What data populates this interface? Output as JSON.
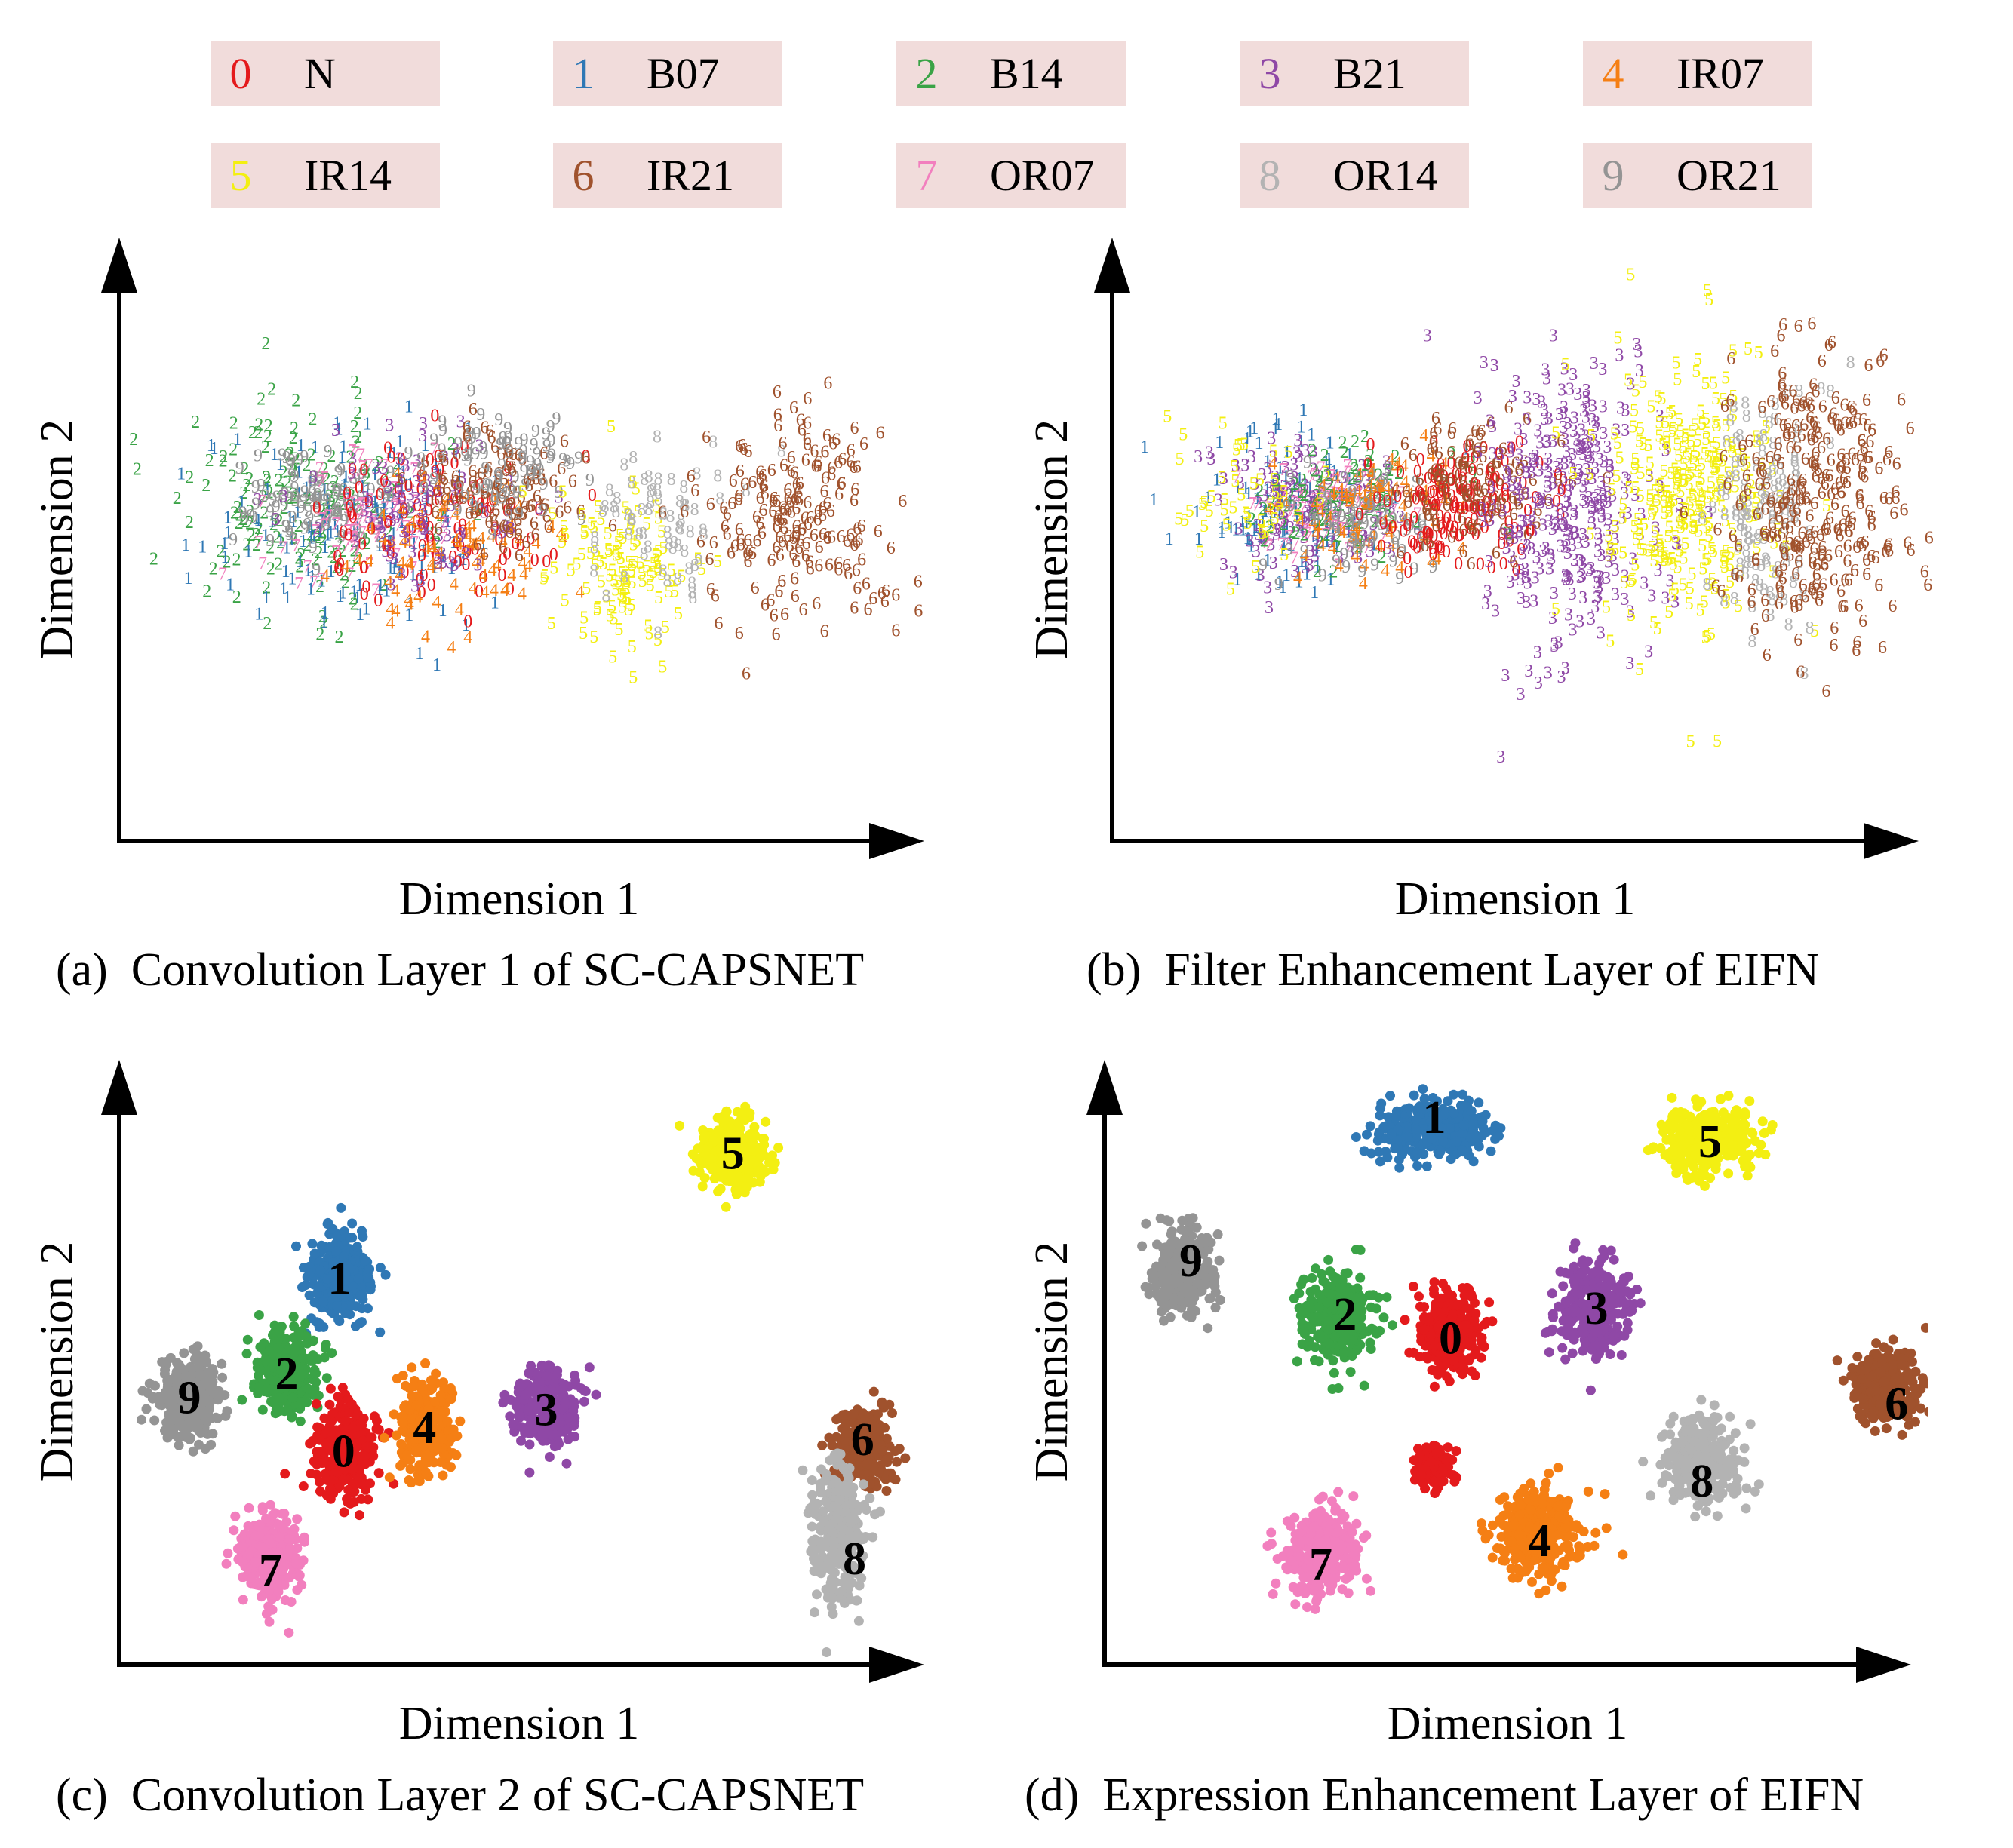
{
  "legend": [
    {
      "digit": "0",
      "name": "N",
      "color": "#e41a1c"
    },
    {
      "digit": "1",
      "name": "B07",
      "color": "#2f78b5"
    },
    {
      "digit": "2",
      "name": "B14",
      "color": "#3aa346"
    },
    {
      "digit": "3",
      "name": "B21",
      "color": "#8f48a6"
    },
    {
      "digit": "4",
      "name": "IR07",
      "color": "#f57f14"
    },
    {
      "digit": "5",
      "name": "IR14",
      "color": "#f3ef12"
    },
    {
      "digit": "6",
      "name": "IR21",
      "color": "#a0522d"
    },
    {
      "digit": "7",
      "name": "OR07",
      "color": "#f27fbe"
    },
    {
      "digit": "8",
      "name": "OR14",
      "color": "#b3b3b3"
    },
    {
      "digit": "9",
      "name": "OR21",
      "color": "#949494"
    }
  ],
  "legend_bg_color": "#f1dcdb",
  "chart_data": [
    {
      "type": "scatter",
      "caption": "(a)  Convolution Layer 1 of SC-CAPSNET",
      "xlabel": "Dimension 1",
      "ylabel": "Dimension 2",
      "xlim": [
        0,
        100
      ],
      "ylim": [
        0,
        100
      ],
      "grid": false,
      "point_style": "digit markers",
      "clusters": [
        {
          "class": "2",
          "x": 22,
          "y": 56,
          "spread": [
            15,
            16
          ],
          "n": 160
        },
        {
          "class": "1",
          "x": 28,
          "y": 52,
          "spread": [
            16,
            16
          ],
          "n": 160
        },
        {
          "class": "9",
          "x": 24,
          "y": 56,
          "spread": [
            8,
            7
          ],
          "n": 110
        },
        {
          "class": "7",
          "x": 30,
          "y": 54,
          "spread": [
            10,
            10
          ],
          "n": 90
        },
        {
          "class": "0",
          "x": 38,
          "y": 52,
          "spread": [
            14,
            12
          ],
          "n": 110
        },
        {
          "class": "4",
          "x": 40,
          "y": 47,
          "spread": [
            12,
            11
          ],
          "n": 90
        },
        {
          "class": "3",
          "x": 36,
          "y": 56,
          "spread": [
            12,
            11
          ],
          "n": 90
        },
        {
          "class": "6",
          "x": 46,
          "y": 58,
          "spread": [
            9,
            9
          ],
          "n": 110
        },
        {
          "class": "9",
          "x": 47,
          "y": 62,
          "spread": [
            8,
            8
          ],
          "n": 90
        },
        {
          "class": "5",
          "x": 62,
          "y": 44,
          "spread": [
            8,
            12
          ],
          "n": 120
        },
        {
          "class": "8",
          "x": 66,
          "y": 52,
          "spread": [
            8,
            14
          ],
          "n": 70
        },
        {
          "class": "6",
          "x": 82,
          "y": 54,
          "spread": [
            11,
            16
          ],
          "n": 200
        }
      ],
      "annotations": []
    },
    {
      "type": "scatter",
      "caption": "(b)  Filter Enhancement Layer of EIFN",
      "xlabel": "Dimension 1",
      "ylabel": "Dimension 2",
      "xlim": [
        0,
        100
      ],
      "ylim": [
        0,
        100
      ],
      "grid": false,
      "point_style": "digit markers",
      "clusters": [
        {
          "class": "1",
          "x": 22,
          "y": 56,
          "spread": [
            12,
            12
          ],
          "n": 120
        },
        {
          "class": "3",
          "x": 24,
          "y": 54,
          "spread": [
            11,
            11
          ],
          "n": 140
        },
        {
          "class": "7",
          "x": 26,
          "y": 55,
          "spread": [
            9,
            8
          ],
          "n": 90
        },
        {
          "class": "2",
          "x": 28,
          "y": 57,
          "spread": [
            10,
            9
          ],
          "n": 90
        },
        {
          "class": "4",
          "x": 32,
          "y": 54,
          "spread": [
            10,
            9
          ],
          "n": 100
        },
        {
          "class": "9",
          "x": 30,
          "y": 52,
          "spread": [
            9,
            8
          ],
          "n": 80
        },
        {
          "class": "0",
          "x": 42,
          "y": 56,
          "spread": [
            9,
            9
          ],
          "n": 150
        },
        {
          "class": "6",
          "x": 44,
          "y": 58,
          "spread": [
            10,
            10
          ],
          "n": 120
        },
        {
          "class": "5",
          "x": 16,
          "y": 56,
          "spread": [
            8,
            11
          ],
          "n": 50
        },
        {
          "class": "3",
          "x": 56,
          "y": 56,
          "spread": [
            10,
            22
          ],
          "n": 320
        },
        {
          "class": "5",
          "x": 70,
          "y": 57,
          "spread": [
            10,
            22
          ],
          "n": 300
        },
        {
          "class": "8",
          "x": 80,
          "y": 54,
          "spread": [
            6,
            20
          ],
          "n": 120
        },
        {
          "class": "6",
          "x": 86,
          "y": 56,
          "spread": [
            9,
            22
          ],
          "n": 300
        }
      ],
      "annotations": []
    },
    {
      "type": "scatter",
      "caption": "(c)  Convolution Layer 2 of SC-CAPSNET",
      "xlabel": "Dimension 1",
      "ylabel": "Dimension 2",
      "xlim": [
        0,
        100
      ],
      "ylim": [
        0,
        100
      ],
      "grid": false,
      "point_style": "filled points",
      "clusters": [
        {
          "class": "5",
          "x": 75,
          "y": 86,
          "spread": [
            3.5,
            6
          ],
          "n": 280
        },
        {
          "class": "1",
          "x": 26.5,
          "y": 65,
          "spread": [
            3.6,
            6.5
          ],
          "n": 300
        },
        {
          "class": "2",
          "x": 20,
          "y": 49,
          "spread": [
            3.6,
            6
          ],
          "n": 300
        },
        {
          "class": "9",
          "x": 8,
          "y": 45,
          "spread": [
            3.6,
            6.5
          ],
          "n": 300
        },
        {
          "class": "0",
          "x": 27,
          "y": 36,
          "spread": [
            3.4,
            7
          ],
          "n": 300
        },
        {
          "class": "4",
          "x": 37,
          "y": 40,
          "spread": [
            3.2,
            7
          ],
          "n": 300
        },
        {
          "class": "3",
          "x": 52,
          "y": 43,
          "spread": [
            3.4,
            6
          ],
          "n": 280
        },
        {
          "class": "7",
          "x": 18,
          "y": 18,
          "spread": [
            3.4,
            6.5
          ],
          "n": 300
        },
        {
          "class": "6",
          "x": 91,
          "y": 36,
          "spread": [
            3.2,
            6.5
          ],
          "n": 280
        },
        {
          "class": "8",
          "x": 88,
          "y": 22,
          "spread": [
            3,
            10
          ],
          "n": 320
        }
      ],
      "annotations": [
        {
          "text": "5",
          "x": 75,
          "y": 86
        },
        {
          "text": "1",
          "x": 26.5,
          "y": 65
        },
        {
          "text": "2",
          "x": 20,
          "y": 49
        },
        {
          "text": "9",
          "x": 8,
          "y": 45
        },
        {
          "text": "0",
          "x": 27,
          "y": 36
        },
        {
          "text": "4",
          "x": 37,
          "y": 40
        },
        {
          "text": "3",
          "x": 52,
          "y": 43
        },
        {
          "text": "7",
          "x": 18,
          "y": 16
        },
        {
          "text": "6",
          "x": 91,
          "y": 38
        },
        {
          "text": "8",
          "x": 90,
          "y": 18
        }
      ]
    },
    {
      "type": "scatter",
      "caption": "(d)  Expression Enhancement Layer of EIFN",
      "xlabel": "Dimension 1",
      "ylabel": "Dimension 2",
      "xlim": [
        0,
        100
      ],
      "ylim": [
        0,
        100
      ],
      "grid": false,
      "point_style": "filled points",
      "clusters": [
        {
          "class": "1",
          "x": 40,
          "y": 90,
          "spread": [
            6,
            4.5
          ],
          "n": 320
        },
        {
          "class": "5",
          "x": 74,
          "y": 88,
          "spread": [
            5,
            5
          ],
          "n": 320
        },
        {
          "class": "9",
          "x": 9,
          "y": 66,
          "spread": [
            3.6,
            6.5
          ],
          "n": 300
        },
        {
          "class": "2",
          "x": 28,
          "y": 58,
          "spread": [
            4,
            6.5
          ],
          "n": 320
        },
        {
          "class": "0",
          "x": 42,
          "y": 56,
          "spread": [
            3.4,
            6
          ],
          "n": 280
        },
        {
          "class": "3",
          "x": 60,
          "y": 60,
          "spread": [
            4,
            6.5
          ],
          "n": 300
        },
        {
          "class": "6",
          "x": 96,
          "y": 47,
          "spread": [
            4,
            5.5
          ],
          "n": 300
        },
        {
          "class": "0",
          "x": 40,
          "y": 33,
          "spread": [
            2.2,
            3.2
          ],
          "n": 120
        },
        {
          "class": "8",
          "x": 73,
          "y": 34,
          "spread": [
            4,
            6.5
          ],
          "n": 300
        },
        {
          "class": "7",
          "x": 26,
          "y": 19,
          "spread": [
            4.2,
            6.5
          ],
          "n": 320
        },
        {
          "class": "4",
          "x": 53,
          "y": 22,
          "spread": [
            4.8,
            6.5
          ],
          "n": 320
        }
      ],
      "annotations": [
        {
          "text": "1",
          "x": 40,
          "y": 92
        },
        {
          "text": "5",
          "x": 74,
          "y": 88
        },
        {
          "text": "9",
          "x": 10,
          "y": 68
        },
        {
          "text": "2",
          "x": 29,
          "y": 59
        },
        {
          "text": "0",
          "x": 42,
          "y": 55
        },
        {
          "text": "3",
          "x": 60,
          "y": 60
        },
        {
          "text": "6",
          "x": 97,
          "y": 44
        },
        {
          "text": "8",
          "x": 73,
          "y": 31
        },
        {
          "text": "7",
          "x": 26,
          "y": 17
        },
        {
          "text": "4",
          "x": 53,
          "y": 21
        }
      ]
    }
  ]
}
